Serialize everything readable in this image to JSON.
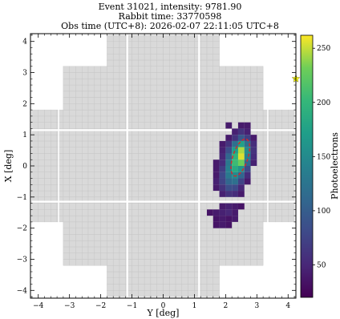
{
  "chart_data": {
    "type": "heatmap",
    "title_lines": [
      "Event 31021, intensity: 9781.90",
      "Rabbit time: 33770598",
      "Obs time (UTC+8): 2026-02-07 22:11:05 UTC+8"
    ],
    "xlabel": "Y [deg]",
    "ylabel": "X [deg]",
    "xlim": [
      -4.25,
      4.25
    ],
    "ylim": [
      -4.25,
      4.25
    ],
    "xticks": [
      "−4",
      "−3",
      "−2",
      "−1",
      "0",
      "1",
      "2",
      "3",
      "4"
    ],
    "yticks": [
      "−4",
      "−3",
      "−2",
      "−1",
      "0",
      "1",
      "2",
      "3",
      "4"
    ],
    "colorbar": {
      "label": "Photoelectrons",
      "range": [
        20,
        262
      ],
      "ticks": [
        "50",
        "100",
        "150",
        "200",
        "250"
      ],
      "colormap": "viridis"
    },
    "camera": {
      "pixel_size_deg": 0.2,
      "gap_color": "#ffffff",
      "empty_pixel_color": "#d9d9d9",
      "pixel_edge_color": "#c4c4c4"
    },
    "signal_pixels": [
      [
        2.1,
        1.3,
        40
      ],
      [
        2.5,
        1.3,
        40
      ],
      [
        2.7,
        1.3,
        40
      ],
      [
        2.3,
        1.1,
        45
      ],
      [
        2.5,
        1.1,
        60
      ],
      [
        2.7,
        1.1,
        45
      ],
      [
        2.1,
        0.9,
        40
      ],
      [
        2.3,
        0.9,
        60
      ],
      [
        2.5,
        0.9,
        95
      ],
      [
        2.7,
        0.9,
        70
      ],
      [
        2.9,
        0.9,
        40
      ],
      [
        1.9,
        0.7,
        40
      ],
      [
        2.1,
        0.7,
        60
      ],
      [
        2.3,
        0.7,
        120
      ],
      [
        2.5,
        0.7,
        175
      ],
      [
        2.7,
        0.7,
        120
      ],
      [
        2.9,
        0.7,
        55
      ],
      [
        1.9,
        0.5,
        45
      ],
      [
        2.1,
        0.5,
        85
      ],
      [
        2.3,
        0.5,
        170
      ],
      [
        2.5,
        0.5,
        245
      ],
      [
        2.7,
        0.5,
        150
      ],
      [
        2.9,
        0.5,
        60
      ],
      [
        1.9,
        0.3,
        50
      ],
      [
        2.1,
        0.3,
        110
      ],
      [
        2.3,
        0.3,
        195
      ],
      [
        2.5,
        0.3,
        255
      ],
      [
        2.7,
        0.3,
        140
      ],
      [
        2.9,
        0.3,
        55
      ],
      [
        1.7,
        0.1,
        40
      ],
      [
        1.9,
        0.1,
        55
      ],
      [
        2.1,
        0.1,
        130
      ],
      [
        2.3,
        0.1,
        205
      ],
      [
        2.5,
        0.1,
        230
      ],
      [
        2.7,
        0.1,
        110
      ],
      [
        2.9,
        0.1,
        45
      ],
      [
        1.7,
        -0.1,
        40
      ],
      [
        1.9,
        -0.1,
        70
      ],
      [
        2.1,
        -0.1,
        140
      ],
      [
        2.3,
        -0.1,
        185
      ],
      [
        2.5,
        -0.1,
        160
      ],
      [
        2.7,
        -0.1,
        80
      ],
      [
        1.7,
        -0.3,
        40
      ],
      [
        1.9,
        -0.3,
        80
      ],
      [
        2.1,
        -0.3,
        130
      ],
      [
        2.3,
        -0.3,
        150
      ],
      [
        2.5,
        -0.3,
        110
      ],
      [
        2.7,
        -0.3,
        55
      ],
      [
        1.7,
        -0.5,
        45
      ],
      [
        1.9,
        -0.5,
        75
      ],
      [
        2.1,
        -0.5,
        110
      ],
      [
        2.3,
        -0.5,
        120
      ],
      [
        2.5,
        -0.5,
        75
      ],
      [
        2.7,
        -0.5,
        40
      ],
      [
        1.7,
        -0.7,
        40
      ],
      [
        1.9,
        -0.7,
        60
      ],
      [
        2.1,
        -0.7,
        85
      ],
      [
        2.3,
        -0.7,
        80
      ],
      [
        2.5,
        -0.7,
        50
      ],
      [
        1.9,
        -0.9,
        45
      ],
      [
        2.1,
        -0.9,
        60
      ],
      [
        2.3,
        -0.9,
        55
      ],
      [
        2.5,
        -0.9,
        40
      ],
      [
        1.9,
        -1.3,
        40
      ],
      [
        2.1,
        -1.3,
        45
      ],
      [
        2.3,
        -1.3,
        40
      ],
      [
        2.5,
        -1.3,
        35
      ],
      [
        1.5,
        -1.5,
        35
      ],
      [
        1.7,
        -1.5,
        40
      ],
      [
        1.9,
        -1.5,
        45
      ],
      [
        2.1,
        -1.5,
        50
      ],
      [
        2.3,
        -1.5,
        40
      ],
      [
        1.7,
        -1.7,
        35
      ],
      [
        1.9,
        -1.7,
        40
      ],
      [
        2.1,
        -1.7,
        35
      ],
      [
        2.3,
        -1.7,
        40
      ],
      [
        1.7,
        -1.9,
        35
      ],
      [
        1.9,
        -1.9,
        40
      ],
      [
        2.1,
        -1.9,
        35
      ]
    ],
    "hillas_ellipse": {
      "center": [
        2.47,
        0.27
      ],
      "half_length": 0.62,
      "half_width": 0.24,
      "angle_deg_from_x_axis": 72,
      "color": "#d62728",
      "linestyle": "dashed"
    },
    "source_marker": {
      "position": [
        4.25,
        2.8
      ],
      "color": "#ffff00",
      "shape": "star"
    }
  }
}
